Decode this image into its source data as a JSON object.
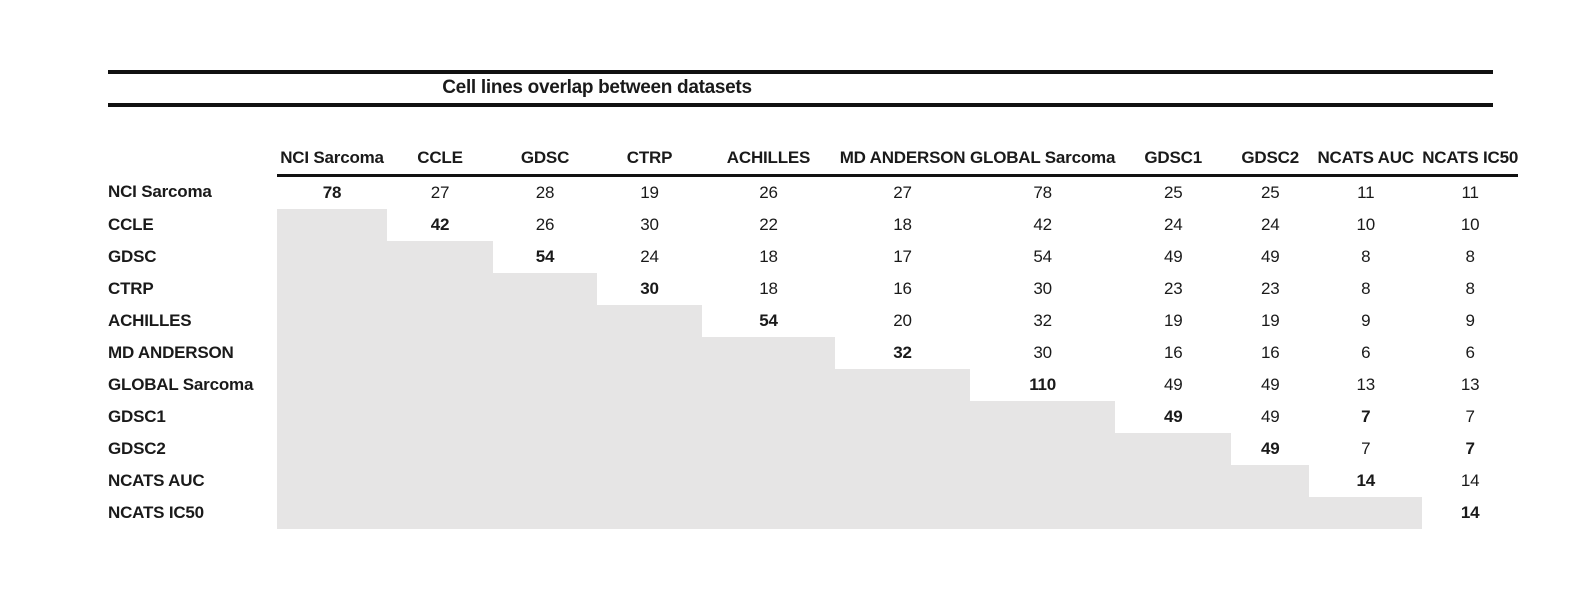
{
  "title": "Cell lines overlap between datasets",
  "matrix": {
    "columns": [
      "NCI Sarcoma",
      "CCLE",
      "GDSC",
      "CTRP",
      "ACHILLES",
      "MD ANDERSON",
      "GLOBAL Sarcoma",
      "GDSC1",
      "GDSC2",
      "NCATS AUC",
      "NCATS IC50"
    ],
    "rows": [
      {
        "label": "NCI Sarcoma",
        "values": [
          78,
          27,
          28,
          19,
          26,
          27,
          78,
          25,
          25,
          11,
          11
        ]
      },
      {
        "label": "CCLE",
        "values": [
          null,
          42,
          26,
          30,
          22,
          18,
          42,
          24,
          24,
          10,
          10
        ]
      },
      {
        "label": "GDSC",
        "values": [
          null,
          null,
          54,
          24,
          18,
          17,
          54,
          49,
          49,
          8,
          8
        ]
      },
      {
        "label": "CTRP",
        "values": [
          null,
          null,
          null,
          30,
          18,
          16,
          30,
          23,
          23,
          8,
          8
        ]
      },
      {
        "label": "ACHILLES",
        "values": [
          null,
          null,
          null,
          null,
          54,
          20,
          32,
          19,
          19,
          9,
          9
        ]
      },
      {
        "label": "MD ANDERSON",
        "values": [
          null,
          null,
          null,
          null,
          null,
          32,
          30,
          16,
          16,
          6,
          6
        ]
      },
      {
        "label": "GLOBAL Sarcoma",
        "values": [
          null,
          null,
          null,
          null,
          null,
          null,
          110,
          49,
          49,
          13,
          13
        ]
      },
      {
        "label": "GDSC1",
        "values": [
          null,
          null,
          null,
          null,
          null,
          null,
          null,
          49,
          49,
          7,
          7
        ]
      },
      {
        "label": "GDSC2",
        "values": [
          null,
          null,
          null,
          null,
          null,
          null,
          null,
          null,
          49,
          7,
          7
        ]
      },
      {
        "label": "NCATS AUC",
        "values": [
          null,
          null,
          null,
          null,
          null,
          null,
          null,
          null,
          null,
          14,
          14
        ]
      },
      {
        "label": "NCATS IC50",
        "values": [
          null,
          null,
          null,
          null,
          null,
          null,
          null,
          null,
          null,
          null,
          14
        ]
      }
    ],
    "bold_cells": [
      [
        0,
        0
      ],
      [
        1,
        1
      ],
      [
        2,
        2
      ],
      [
        3,
        3
      ],
      [
        4,
        4
      ],
      [
        5,
        5
      ],
      [
        6,
        6
      ],
      [
        7,
        7
      ],
      [
        7,
        9
      ],
      [
        8,
        8
      ],
      [
        8,
        10
      ],
      [
        9,
        9
      ],
      [
        10,
        10
      ]
    ],
    "empty_fill": "#e6e5e5",
    "text_color": "#1a1a1a"
  }
}
